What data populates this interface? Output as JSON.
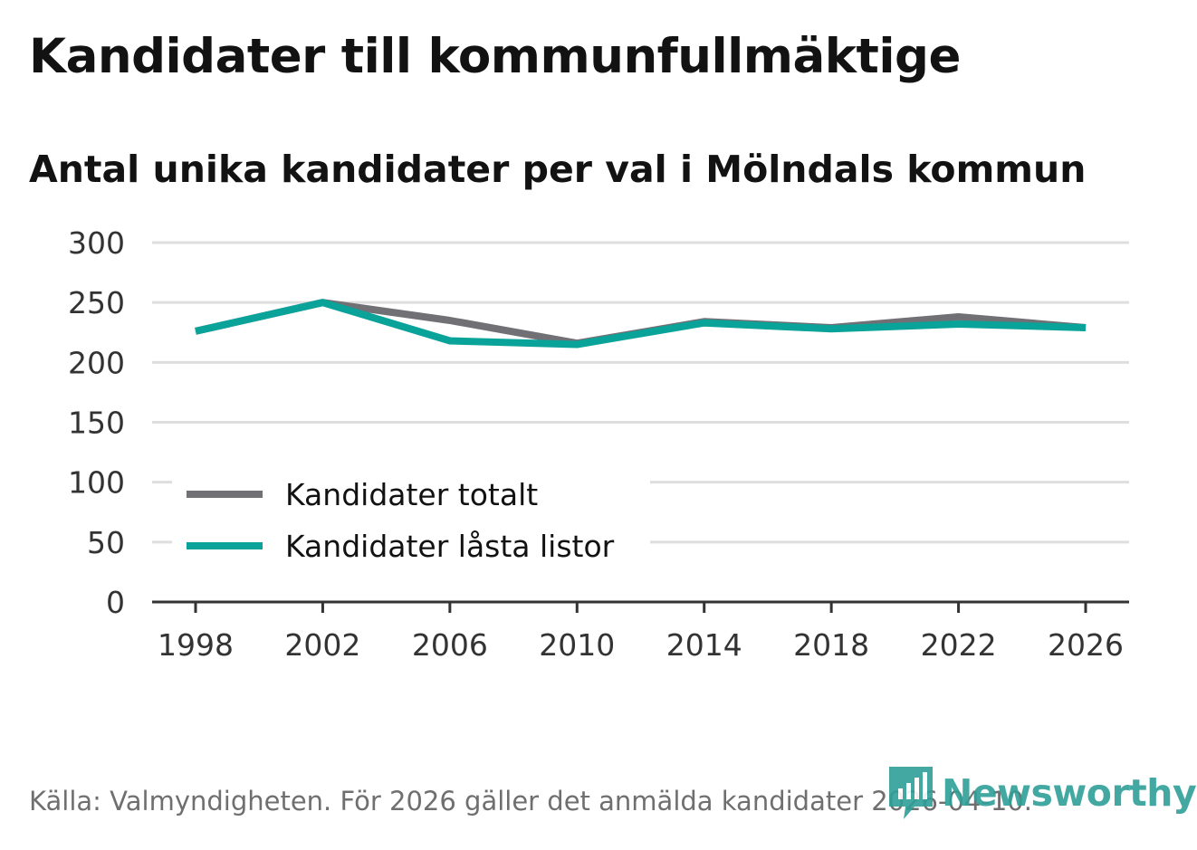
{
  "header": {
    "title": "Kandidater till kommunfullmäktige",
    "subtitle": "Antal unika kandidater per val i Mölndals kommun"
  },
  "footer": {
    "source": "Källa: Valmyndigheten. För 2026 gäller det anmälda kandidater 2026-04-10."
  },
  "brand": {
    "name": "Newsworthy",
    "icon": "newsworthy-logo-icon",
    "color": "#2e9f97"
  },
  "chart_data": {
    "type": "line",
    "title": "Kandidater till kommunfullmäktige",
    "subtitle": "Antal unika kandidater per val i Mölndals kommun",
    "xlabel": "",
    "ylabel": "",
    "x": [
      "1998",
      "2002",
      "2006",
      "2010",
      "2014",
      "2018",
      "2022",
      "2026"
    ],
    "ylim": [
      0,
      300
    ],
    "yticks": [
      0,
      50,
      100,
      150,
      200,
      250,
      300
    ],
    "grid": true,
    "legend_position": "bottom-left",
    "series": [
      {
        "name": "Kandidater totalt",
        "color": "#717075",
        "values": [
          226,
          250,
          235,
          216,
          234,
          229,
          238,
          229
        ]
      },
      {
        "name": "Kandidater låsta listor",
        "color": "#0aa39a",
        "values": [
          226,
          250,
          218,
          215,
          233,
          228,
          232,
          229
        ]
      }
    ]
  }
}
